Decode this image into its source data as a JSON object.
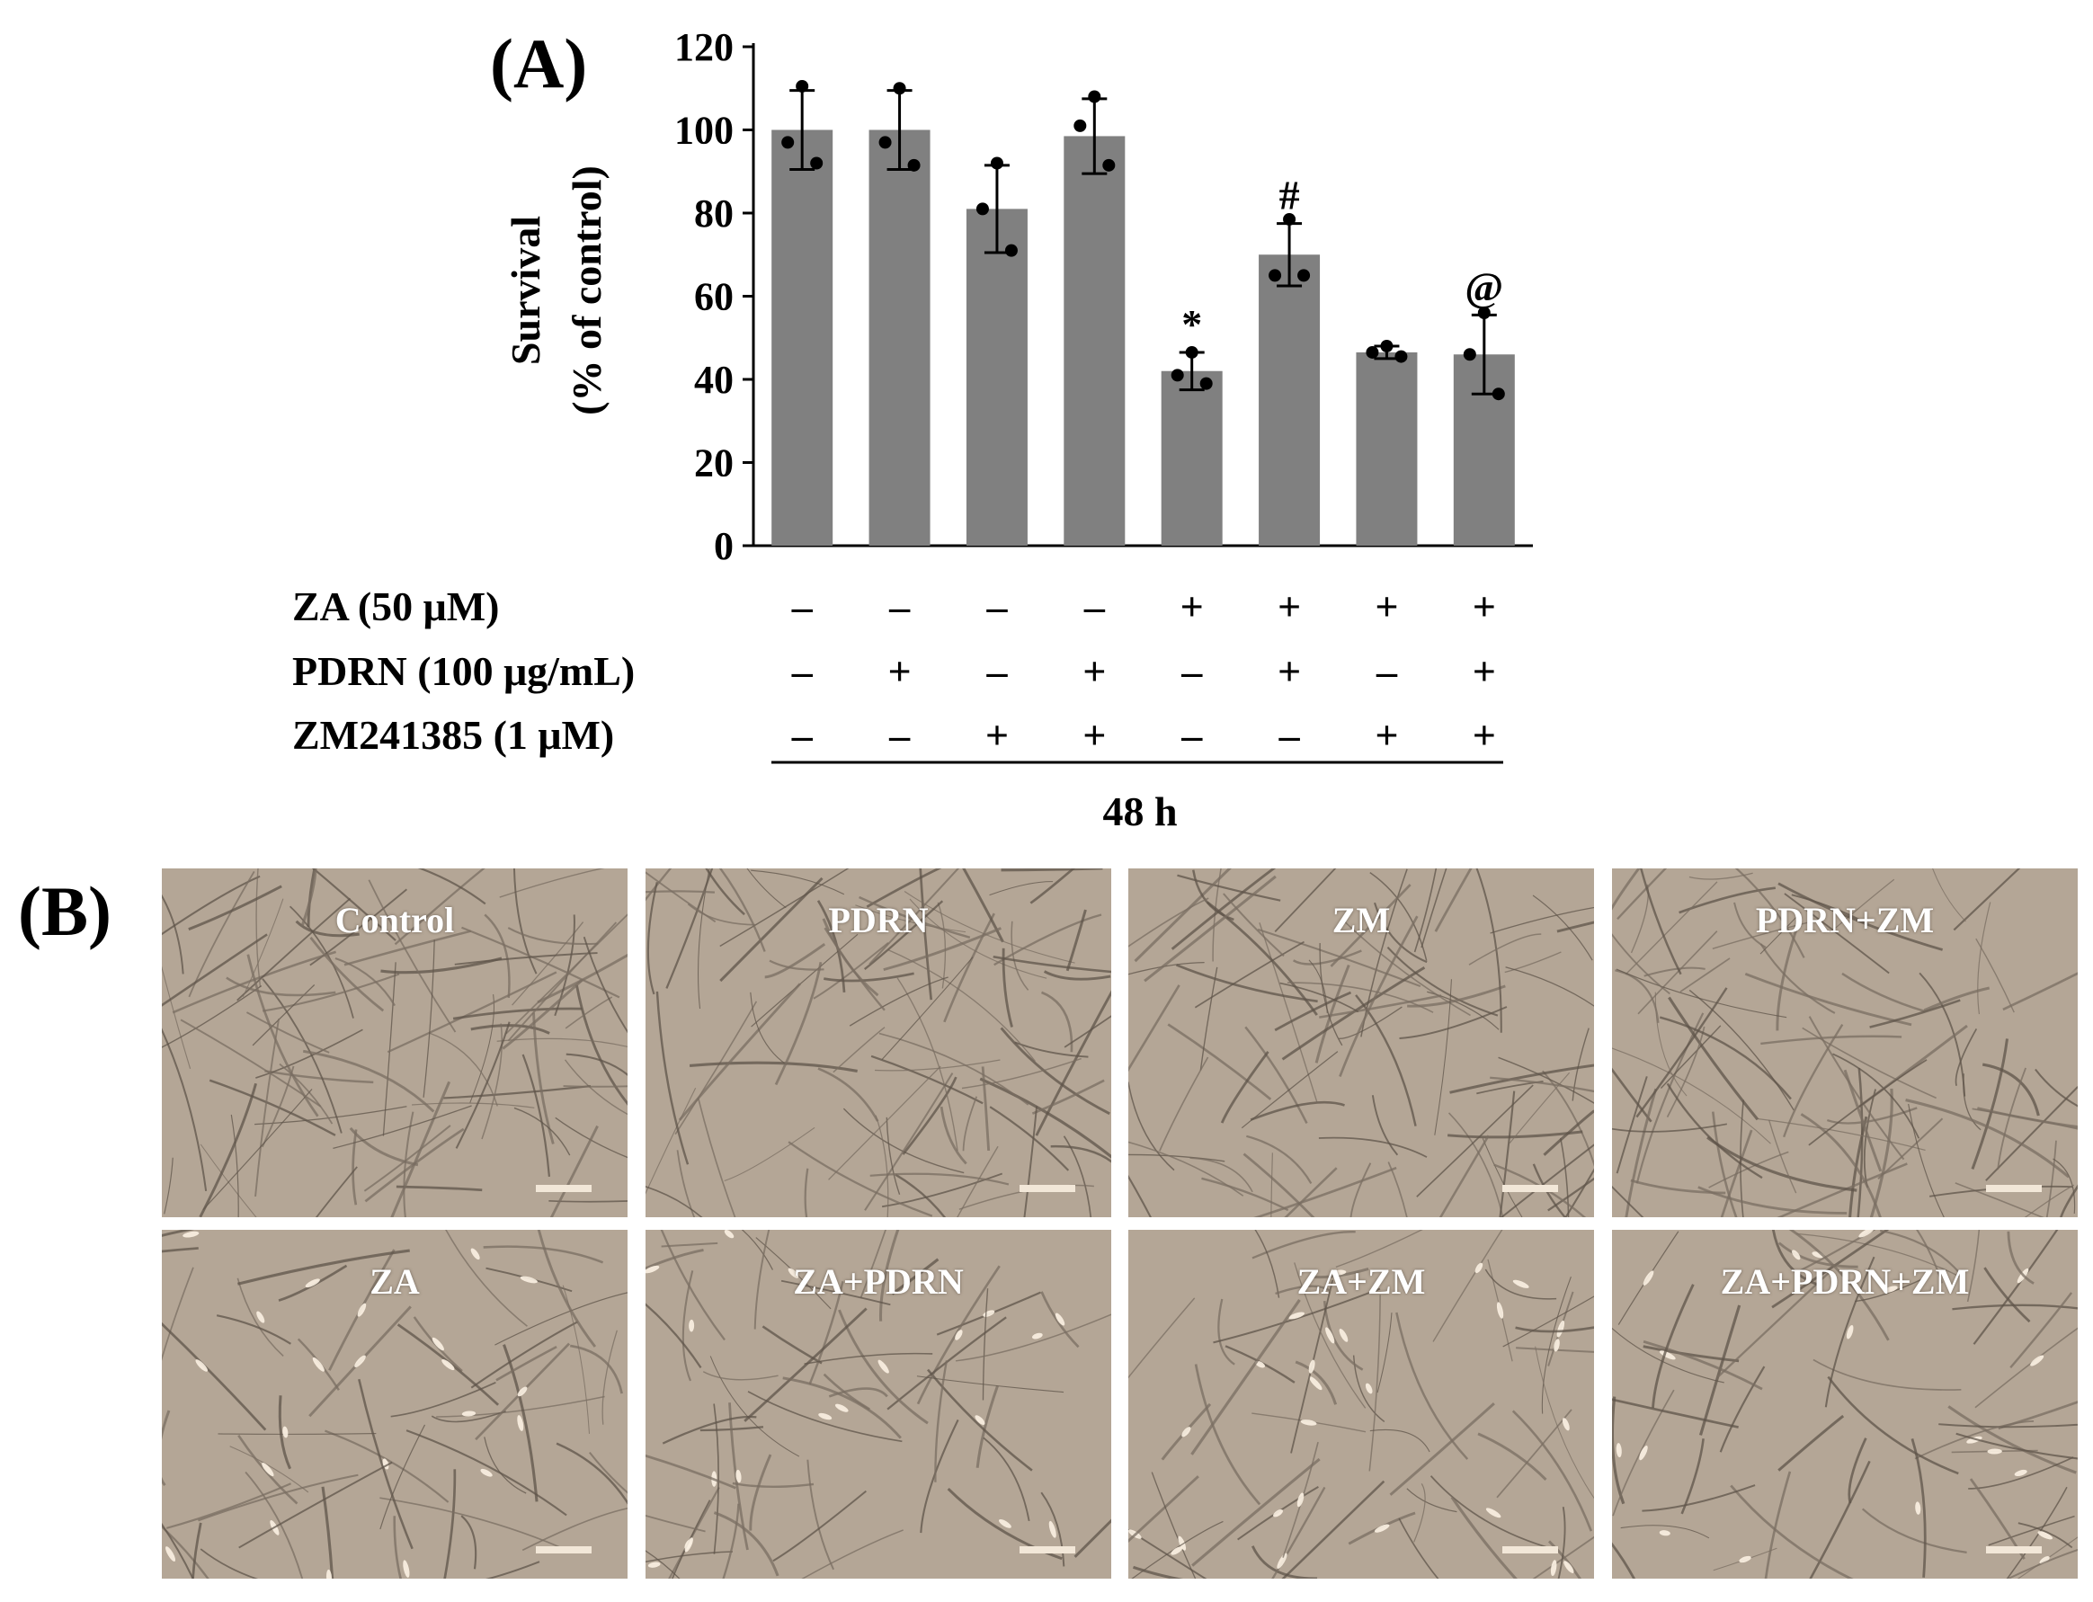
{
  "panel_a_label": "(A)",
  "panel_b_label": "(B)",
  "chart_data": {
    "type": "bar",
    "ylabel_line1": "Survival",
    "ylabel_line2": "(% of control)",
    "ylim": [
      0,
      120
    ],
    "yticks": [
      0,
      20,
      40,
      60,
      80,
      100,
      120
    ],
    "bar_color": "#808080",
    "values": [
      100,
      100,
      81,
      98.5,
      42,
      70,
      46.5,
      46
    ],
    "errors": [
      9.5,
      9.5,
      10.5,
      9,
      4.5,
      7.5,
      1.5,
      9.5
    ],
    "points": [
      [
        110.5,
        97,
        92
      ],
      [
        110,
        97,
        91.5
      ],
      [
        92,
        81,
        71
      ],
      [
        108,
        101,
        91.5
      ],
      [
        46.5,
        41,
        39
      ],
      [
        78.5,
        65,
        65
      ],
      [
        48,
        46.5,
        45.5
      ],
      [
        56,
        46,
        36.5
      ]
    ],
    "annotations": [
      "",
      "",
      "",
      "",
      "*",
      "#",
      "",
      "@"
    ],
    "treatments": [
      {
        "label": "ZA (50 μM)",
        "signs": [
          "–",
          "–",
          "–",
          "–",
          "+",
          "+",
          "+",
          "+"
        ]
      },
      {
        "label": "PDRN (100 μg/mL)",
        "signs": [
          "–",
          "+",
          "–",
          "+",
          "–",
          "+",
          "–",
          "+"
        ]
      },
      {
        "label": "ZM241385 (1 μM)",
        "signs": [
          "–",
          "–",
          "+",
          "+",
          "–",
          "–",
          "+",
          "+"
        ]
      }
    ],
    "time_label": "48 h"
  },
  "micrographs": [
    {
      "label": "Control"
    },
    {
      "label": "PDRN"
    },
    {
      "label": "ZM"
    },
    {
      "label": "PDRN+ZM"
    },
    {
      "label": "ZA"
    },
    {
      "label": "ZA+PDRN"
    },
    {
      "label": "ZA+ZM"
    },
    {
      "label": "ZA+PDRN+ZM"
    }
  ]
}
